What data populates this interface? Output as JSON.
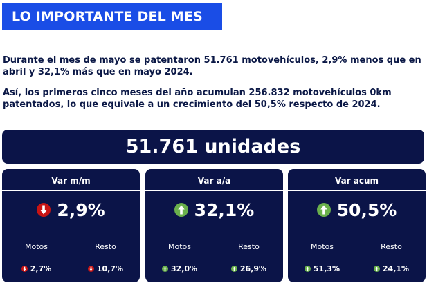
{
  "header": {
    "title": "LO IMPORTANTE DEL MES"
  },
  "intro": {
    "p1": "Durante el mes de mayo se patentaron 51.761 motovehículos, 2,9% menos que en abril y 32,1% más que en mayo 2024.",
    "p2": "Así, los primeros cinco meses del año acumulan 256.832 motovehículos 0km patentados, lo que equivale a un crecimiento del 50,5% respecto de 2024."
  },
  "total": {
    "label": "51.761 unidades"
  },
  "colors": {
    "navy": "#0b1448",
    "blue": "#1a4de6",
    "down": "#c81414",
    "up": "#6ab04c"
  },
  "cards": [
    {
      "title": "Var m/m",
      "value": "2,9%",
      "trend": "down",
      "icon": "down-arrow-icon",
      "left_label": "Motos",
      "left_value": "2,7%",
      "left_trend": "down",
      "right_label": "Resto",
      "right_value": "10,7%",
      "right_trend": "down"
    },
    {
      "title": "Var a/a",
      "value": "32,1%",
      "trend": "up",
      "icon": "up-arrow-icon",
      "left_label": "Motos",
      "left_value": "32,0%",
      "left_trend": "up",
      "right_label": "Resto",
      "right_value": "26,9%",
      "right_trend": "up"
    },
    {
      "title": "Var acum",
      "value": "50,5%",
      "trend": "up",
      "icon": "up-arrow-icon",
      "left_label": "Motos",
      "left_value": "51,3%",
      "left_trend": "up",
      "right_label": "Resto",
      "right_value": "24,1%",
      "right_trend": "up"
    }
  ]
}
